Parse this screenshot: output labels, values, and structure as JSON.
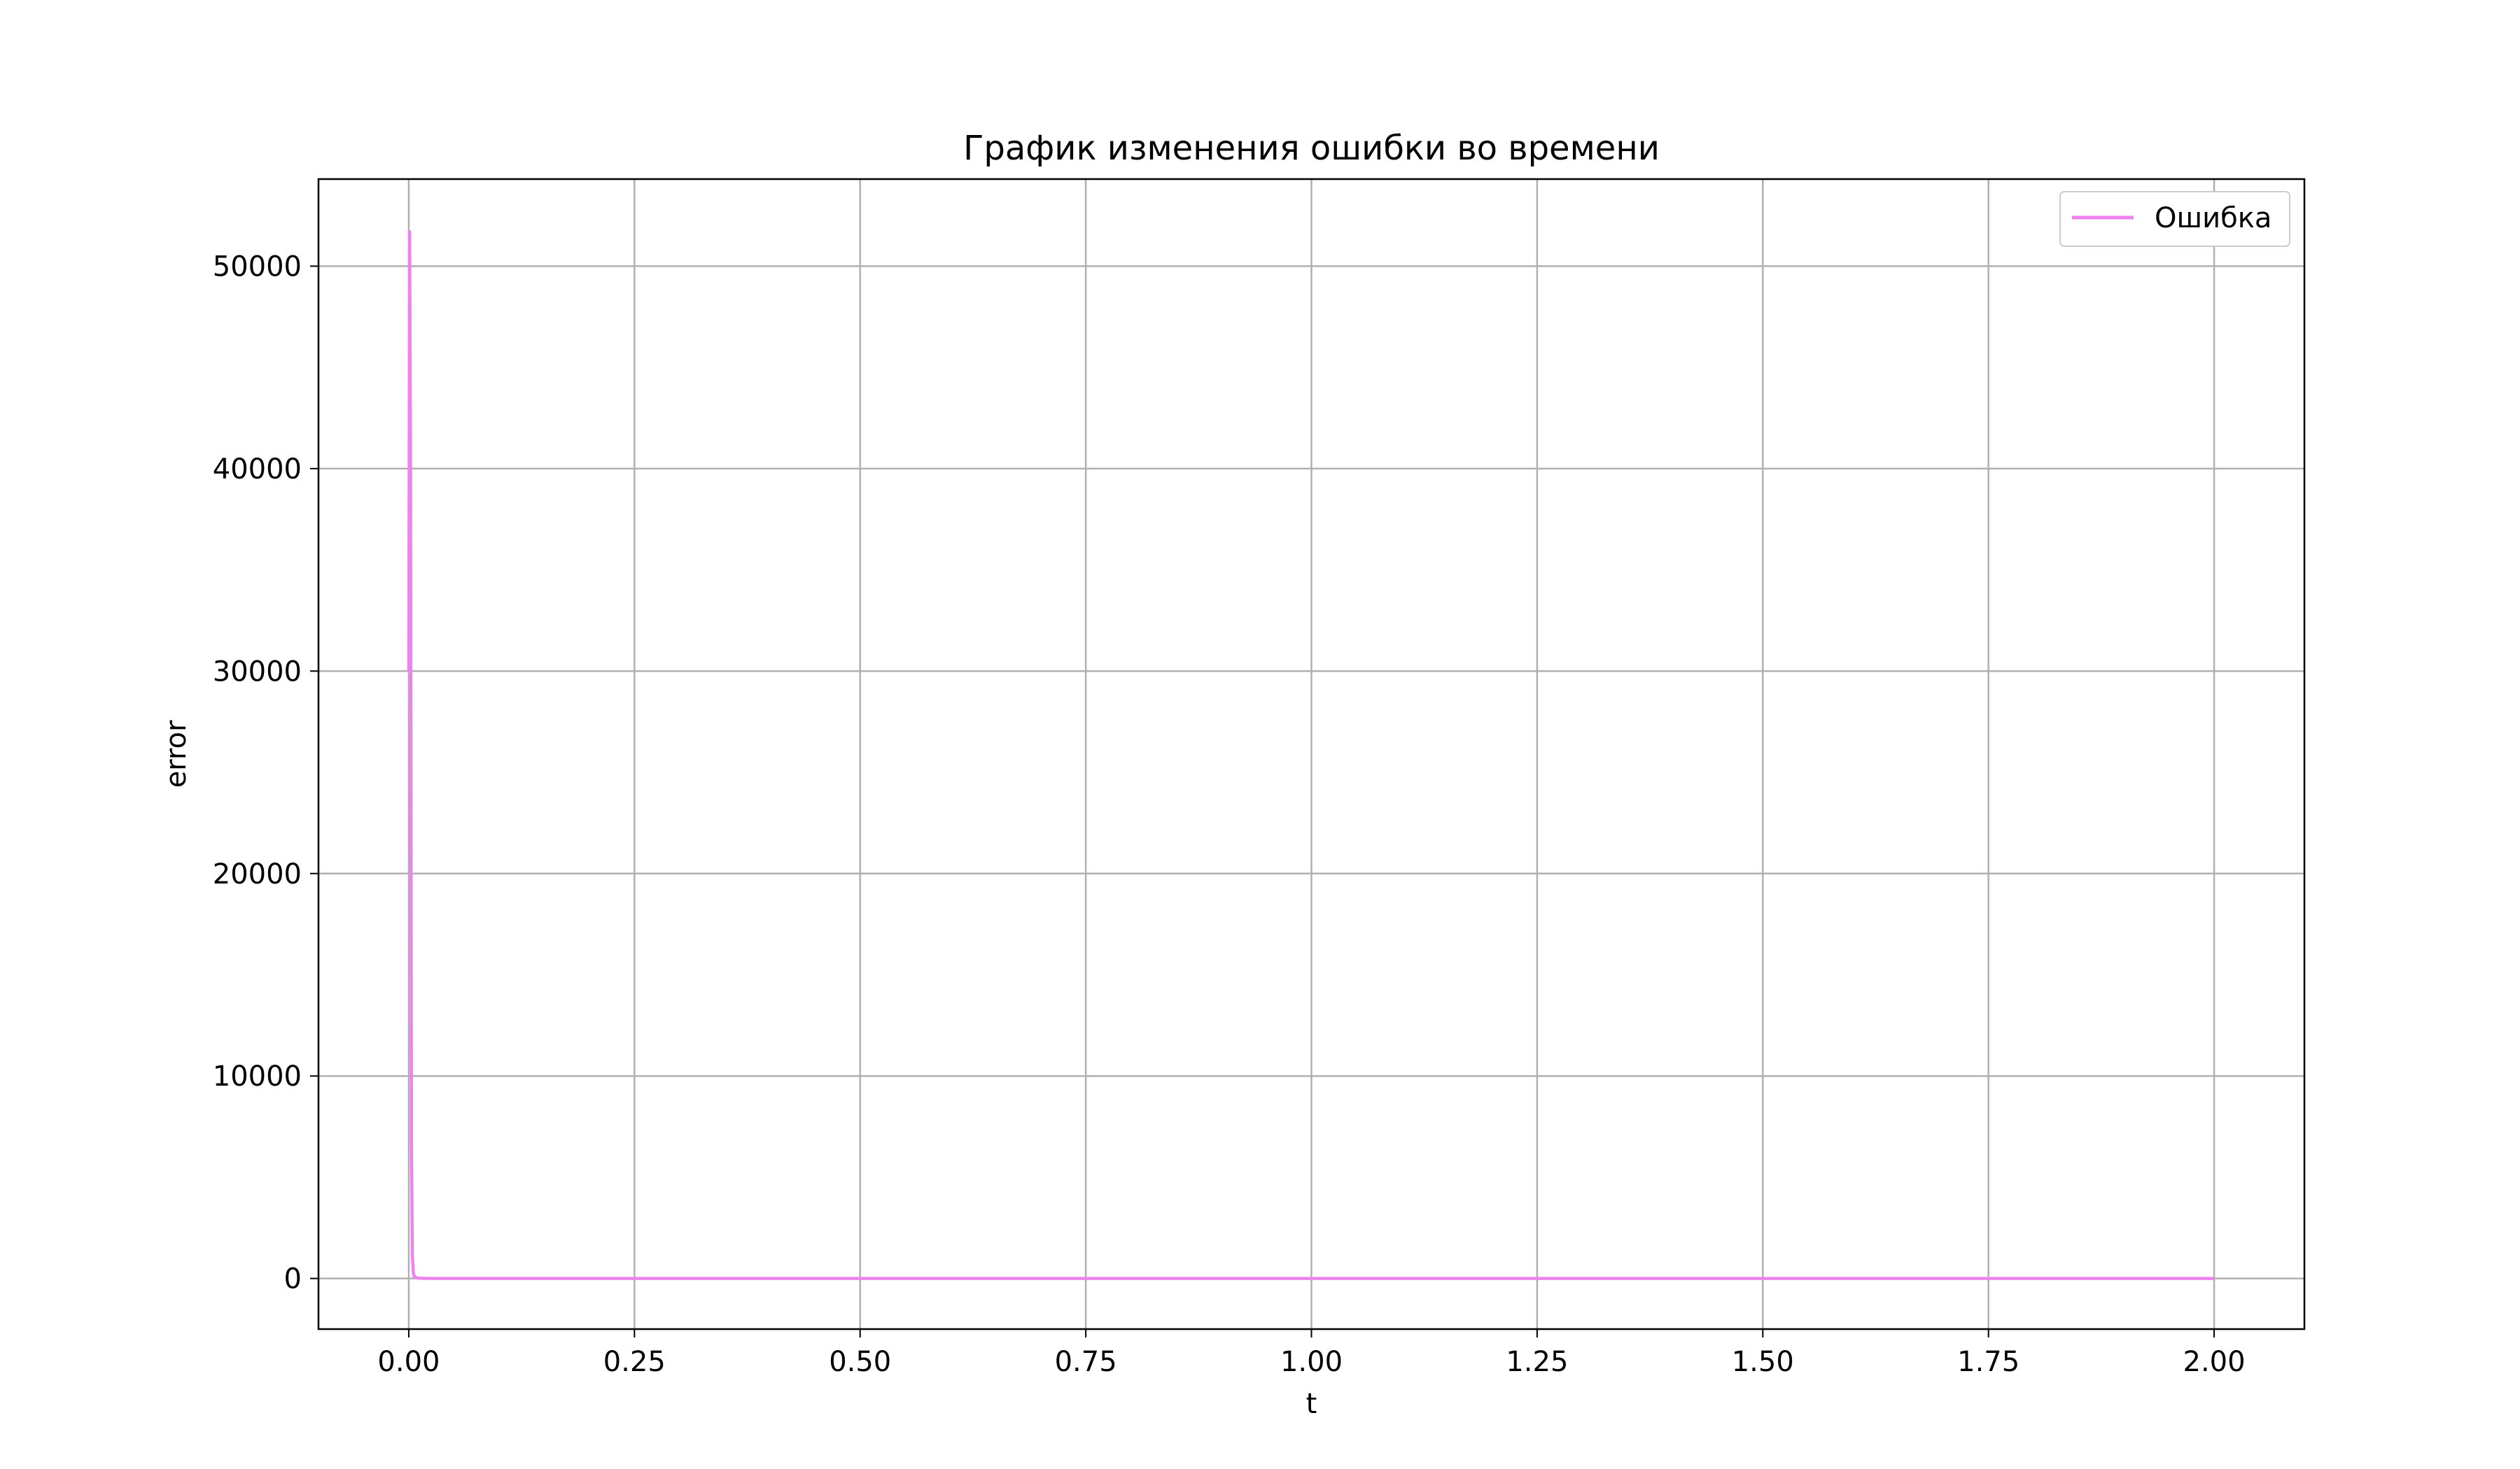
{
  "chart_data": {
    "type": "line",
    "title": "График изменения ошибки во времени",
    "xlabel": "t",
    "ylabel": "error",
    "xlim": [
      -0.1,
      2.1
    ],
    "ylim": [
      -2500,
      54300
    ],
    "xticks": [
      0.0,
      0.25,
      0.5,
      0.75,
      1.0,
      1.25,
      1.5,
      1.75,
      2.0
    ],
    "xtick_labels": [
      "0.00",
      "0.25",
      "0.50",
      "0.75",
      "1.00",
      "1.25",
      "1.50",
      "1.75",
      "2.00"
    ],
    "yticks": [
      0,
      10000,
      20000,
      30000,
      40000,
      50000
    ],
    "ytick_labels": [
      "0",
      "10000",
      "20000",
      "30000",
      "40000",
      "50000"
    ],
    "grid": true,
    "legend_position": "top-right",
    "series": [
      {
        "name": "Ошибка",
        "color": "#ee82ee",
        "x": [
          0.0,
          0.001,
          0.002,
          0.003,
          0.004,
          0.005,
          0.006,
          0.008,
          0.01,
          0.015,
          0.02,
          0.05,
          0.1,
          0.5,
          1.0,
          1.5,
          2.0
        ],
        "y": [
          30000,
          51700,
          40000,
          6500,
          1200,
          300,
          100,
          50,
          20,
          10,
          5,
          2,
          1,
          0,
          0,
          0,
          0
        ]
      }
    ]
  }
}
